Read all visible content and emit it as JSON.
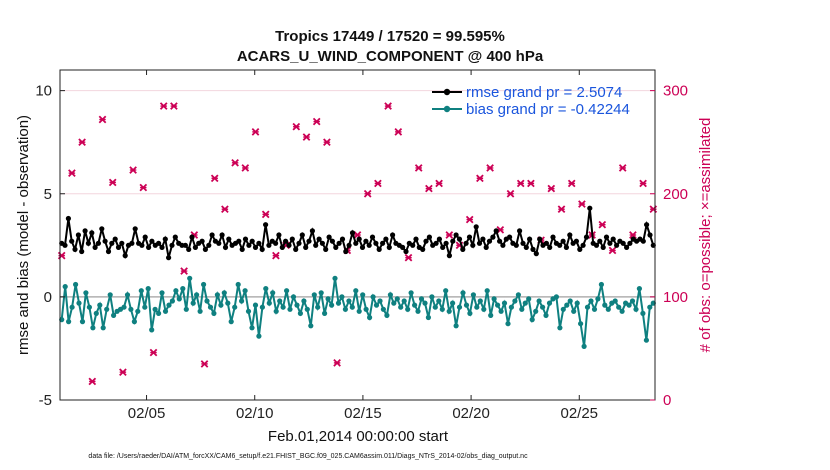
{
  "chart_data": {
    "type": "line",
    "title_line1": "Tropics 17449 / 17520 = 99.595%",
    "title_line2": "ACARS_U_WIND_COMPONENT @ 400 hPa",
    "xlabel": "Feb.01,2014 00:00:00 start",
    "ylabel": "rmse and bias (model - observation)",
    "y2label": "# of obs: o=possible; ×=assimilated",
    "xlim": [
      1,
      28.5
    ],
    "ylim": [
      -5,
      11
    ],
    "y2lim": [
      0,
      320
    ],
    "x_ticks": [
      5,
      10,
      15,
      20,
      25
    ],
    "x_tick_labels": [
      "02/05",
      "02/10",
      "02/15",
      "02/20",
      "02/25"
    ],
    "y_ticks": [
      -5,
      0,
      5,
      10
    ],
    "y_tick_labels": [
      "-5",
      "0",
      "5",
      "10"
    ],
    "y2_ticks": [
      0,
      100,
      200,
      300
    ],
    "y2_tick_labels": [
      "0",
      "100",
      "200",
      "300"
    ],
    "colors": {
      "rmse": "#000000",
      "bias": "#0f8080",
      "obs": "#cc0055",
      "zero_line": "#b0b0b0",
      "legend_text": "#1a55dd"
    },
    "series": [
      {
        "name": "rmse",
        "legend": "rmse grand pr = 2.5074",
        "values": [
          2.6,
          2.5,
          3.8,
          2.7,
          2.3,
          3.0,
          2.2,
          3.2,
          2.6,
          3.1,
          2.4,
          2.6,
          3.3,
          2.7,
          2.2,
          2.6,
          2.8,
          2.4,
          2.6,
          2.0,
          2.5,
          2.6,
          3.3,
          2.6,
          2.5,
          2.9,
          2.4,
          2.7,
          2.5,
          2.6,
          2.4,
          2.8,
          1.9,
          2.5,
          2.9,
          2.6,
          2.5,
          2.5,
          2.3,
          2.9,
          2.4,
          2.6,
          2.7,
          2.3,
          2.5,
          3.0,
          2.7,
          2.6,
          3.0,
          2.4,
          2.8,
          2.5,
          2.6,
          2.7,
          2.3,
          2.8,
          2.5,
          2.7,
          2.4,
          2.6,
          2.3,
          3.5,
          2.5,
          2.7,
          2.6,
          3.0,
          2.4,
          2.7,
          2.5,
          2.8,
          2.3,
          2.6,
          3.0,
          2.4,
          2.7,
          3.2,
          2.5,
          2.8,
          2.6,
          2.3,
          2.9,
          2.7,
          2.4,
          2.6,
          2.8,
          2.2,
          2.5,
          3.1,
          2.6,
          2.8,
          2.4,
          2.7,
          2.5,
          2.9,
          2.6,
          2.3,
          2.6,
          2.8,
          2.4,
          3.0,
          2.6,
          2.5,
          2.4,
          2.2,
          2.6,
          2.5,
          2.8,
          2.4,
          2.3,
          2.7,
          2.9,
          2.5,
          2.6,
          2.8,
          2.4,
          2.6,
          2.0,
          2.7,
          3.0,
          2.8,
          2.3,
          2.6,
          2.9,
          2.5,
          3.4,
          2.6,
          2.8,
          2.4,
          2.7,
          2.9,
          3.2,
          2.7,
          2.5,
          2.8,
          2.9,
          2.6,
          2.5,
          3.2,
          2.6,
          2.4,
          2.8,
          2.3,
          2.1,
          2.8,
          2.5,
          2.6,
          2.4,
          2.9,
          2.6,
          2.5,
          2.7,
          2.4,
          3.0,
          2.6,
          2.7,
          2.3,
          2.5,
          2.9,
          4.3,
          2.6,
          2.5,
          2.7,
          2.4,
          2.9,
          2.6,
          2.8,
          2.5,
          2.7,
          2.6,
          2.4,
          2.6,
          2.8,
          2.7,
          2.8,
          2.7,
          3.5,
          3.0,
          2.5
        ]
      },
      {
        "name": "bias",
        "legend": "bias grand pr = -0.42244",
        "values": [
          -1.1,
          0.5,
          -1.2,
          -0.5,
          0.6,
          -0.3,
          -1.2,
          0.2,
          -0.5,
          -1.5,
          -0.8,
          -0.4,
          -1.5,
          -0.6,
          0.1,
          -0.9,
          -0.7,
          -0.6,
          -0.5,
          0.1,
          -0.6,
          -1.2,
          -0.7,
          0.3,
          -0.5,
          0.4,
          -1.6,
          -0.6,
          -0.8,
          0.2,
          -0.7,
          -0.4,
          -0.2,
          0.3,
          -0.1,
          0.4,
          -0.6,
          0.9,
          -0.3,
          0.1,
          -0.7,
          0.6,
          -0.2,
          -0.5,
          -0.8,
          0.1,
          -0.4,
          0.2,
          -0.3,
          -1.2,
          -0.5,
          0.6,
          -0.2,
          0.3,
          -0.7,
          -1.5,
          -0.4,
          -1.9,
          -0.5,
          0.4,
          -0.3,
          0.2,
          -0.7,
          -0.2,
          -0.5,
          0.3,
          -0.6,
          0.0,
          -0.4,
          -0.8,
          -0.2,
          -0.6,
          -1.4,
          0.1,
          -0.5,
          0.2,
          -0.8,
          -0.1,
          -0.4,
          0.9,
          -0.3,
          0.0,
          -0.6,
          -0.2,
          -0.5,
          0.3,
          -0.7,
          0.1,
          -0.6,
          -1.0,
          0.0,
          -0.4,
          -0.2,
          -0.6,
          -0.9,
          0.1,
          -0.3,
          -0.1,
          -0.5,
          -0.2,
          -0.6,
          0.2,
          -0.4,
          -0.7,
          -0.1,
          -0.3,
          -1.0,
          0.0,
          -0.5,
          -0.2,
          -0.6,
          0.3,
          -0.7,
          -0.3,
          -1.4,
          -0.5,
          0.2,
          -0.4,
          -0.8,
          0.1,
          -0.5,
          -0.2,
          -0.6,
          0.3,
          -0.9,
          -0.1,
          -0.4,
          -0.7,
          -0.3,
          -1.3,
          -0.5,
          -0.2,
          0.1,
          -0.6,
          -0.3,
          -0.1,
          -1.1,
          -0.7,
          -0.2,
          -0.5,
          -0.9,
          -0.3,
          -0.1,
          0.0,
          -1.5,
          -0.6,
          -0.4,
          -0.2,
          -0.7,
          -0.3,
          -1.3,
          -2.4,
          -0.5,
          -0.2,
          -0.6,
          -0.1,
          0.6,
          -0.4,
          -0.6,
          -0.3,
          -0.2,
          -0.5,
          -0.7,
          -0.3,
          -0.4,
          -0.2,
          -0.6,
          0.4,
          -0.8,
          -2.1,
          -0.5,
          -0.3
        ]
      }
    ],
    "obs_counts": [
      140,
      200,
      215,
      220,
      190,
      145,
      250,
      205,
      222,
      18,
      165,
      215,
      272,
      150,
      265,
      211,
      183,
      180,
      27,
      150,
      175,
      223,
      295,
      175,
      206,
      294,
      140,
      46,
      183,
      178,
      285,
      195,
      225,
      285,
      110,
      290,
      125,
      238,
      20,
      160,
      165,
      185,
      35,
      250,
      250,
      215,
      205,
      235,
      185,
      205,
      165,
      230,
      260,
      160,
      225,
      265,
      162,
      260,
      195,
      215,
      180,
      165,
      240,
      140,
      145,
      275,
      150,
      95,
      145,
      265,
      200,
      160,
      255,
      225,
      200,
      270,
      205,
      152,
      250,
      165,
      215,
      36,
      225,
      215,
      145,
      270,
      230,
      160,
      35,
      230,
      200,
      185,
      215,
      210,
      250,
      270,
      285,
      145,
      230,
      260,
      150,
      200,
      138,
      165,
      150,
      225,
      215,
      210,
      205,
      200,
      195,
      210,
      290,
      180,
      160,
      175,
      210,
      150,
      235,
      195,
      175,
      110,
      285,
      215,
      150,
      200,
      225,
      195,
      140,
      165,
      170,
      215,
      200,
      150,
      245,
      210,
      190,
      225,
      210,
      260,
      180,
      155,
      200,
      225,
      205,
      150,
      210,
      185,
      172,
      145,
      210,
      222,
      155,
      190,
      230,
      215,
      160,
      210,
      180,
      170,
      195,
      150,
      145,
      140,
      200,
      225,
      190,
      150,
      160,
      180,
      200,
      210,
      150,
      15,
      185
    ],
    "legend_items": [
      "rmse grand pr = 2.5074",
      "bias grand pr = -0.42244"
    ],
    "footnote": "data file: /Users/raeder/DAI/ATM_forcXX/CAM6_setup/f.e21.FHIST_BGC.f09_025.CAM6assim.011/Diags_NTrS_2014-02/obs_diag_output.nc"
  }
}
